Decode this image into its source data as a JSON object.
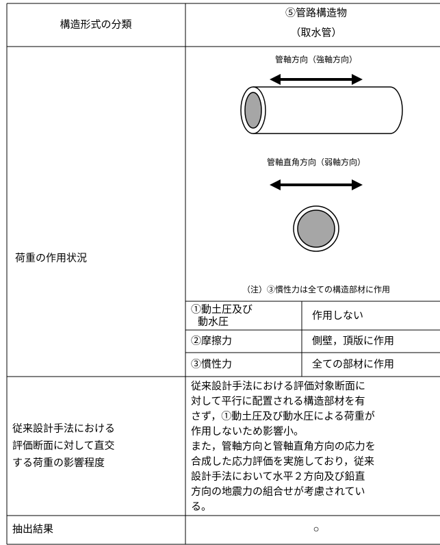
{
  "table": {
    "header": {
      "left": "構造形式の分類",
      "right": [
        "⑤管路構造物",
        "（取水管）"
      ]
    },
    "load": {
      "label": "荷重の作用状況",
      "axial_label": "管軸方向（強軸方向）",
      "transverse_label": "管軸直角方向（弱軸方向）",
      "note": "（注）③慣性力は全ての構造部材に作用",
      "rows": [
        [
          [
            "①動土圧及び",
            "動水圧"
          ],
          "作用しない"
        ],
        [
          [
            "②摩擦力"
          ],
          "側壁，頂版に作用"
        ],
        [
          [
            "③慣性力"
          ],
          "全ての部材に作用"
        ]
      ]
    },
    "influence": {
      "label": [
        "従来設計手法における",
        "評価断面に対して直交",
        "する荷重の影響程度"
      ],
      "text": [
        "従来設計手法における評価対象断面に",
        "対して平行に配置される構造部材を有",
        "さず，①動土圧及び動水圧による荷重が",
        "作用しないため影響小。",
        "また，管軸方向と管軸直角方向の応力を",
        "合成した応力評価を実施しており，従来",
        "設計手法において水平２方向及び鉛直",
        "方向の地震力の組合せが考慮されてい",
        "る。"
      ]
    },
    "result": {
      "label": "抽出結果",
      "value": "○"
    }
  }
}
